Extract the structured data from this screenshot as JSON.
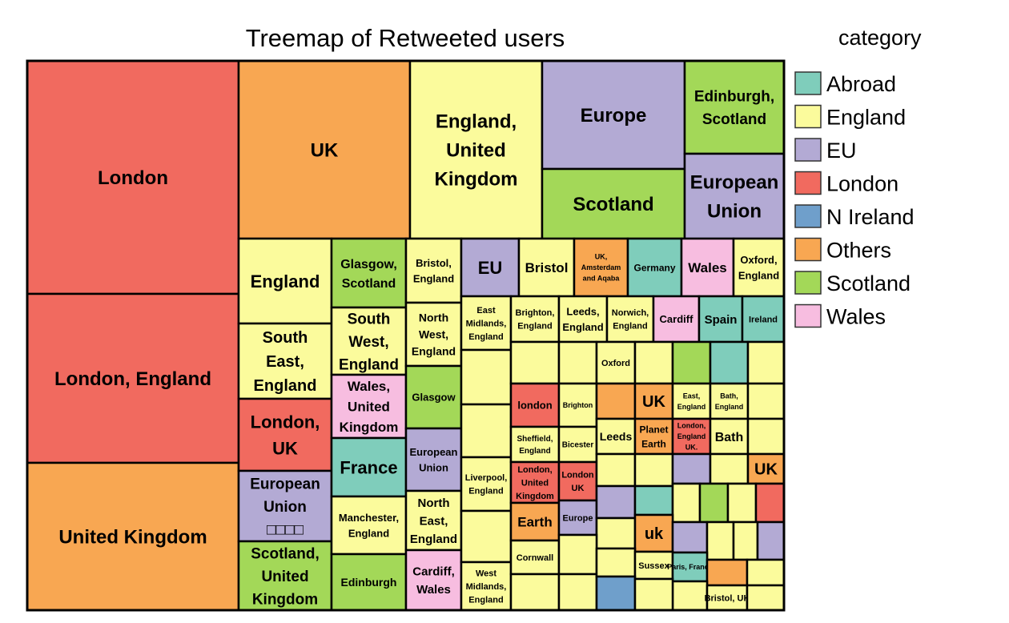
{
  "chart_data": {
    "type": "treemap",
    "title": "Treemap of Retweeted users",
    "legend": {
      "title": "category",
      "placement": "right",
      "entries": [
        {
          "name": "Abroad",
          "color": "#7fcdbb"
        },
        {
          "name": "England",
          "color": "#fbfb9c"
        },
        {
          "name": "EU",
          "color": "#b3aad4"
        },
        {
          "name": "London",
          "color": "#f16a5f"
        },
        {
          "name": "N Ireland",
          "color": "#6f9fcb"
        },
        {
          "name": "Others",
          "color": "#f8a752"
        },
        {
          "name": "Scotland",
          "color": "#a3d858"
        },
        {
          "name": "Wales",
          "color": "#f7bde0"
        }
      ]
    },
    "cells": [
      {
        "label": "London",
        "category": "London"
      },
      {
        "label": "London, England",
        "category": "London"
      },
      {
        "label": "United Kingdom",
        "category": "Others"
      },
      {
        "label": "UK",
        "category": "Others"
      },
      {
        "label": "England, United Kingdom",
        "category": "England"
      },
      {
        "label": "Europe",
        "category": "EU"
      },
      {
        "label": "Scotland",
        "category": "Scotland"
      },
      {
        "label": "Edinburgh, Scotland",
        "category": "Scotland"
      },
      {
        "label": "European Union",
        "category": "EU"
      },
      {
        "label": "England",
        "category": "England"
      },
      {
        "label": "South East, England",
        "category": "England"
      },
      {
        "label": "London, UK",
        "category": "London"
      },
      {
        "label": "European Union □□□□",
        "category": "EU"
      },
      {
        "label": "Scotland, United Kingdom",
        "category": "Scotland"
      },
      {
        "label": "Glasgow, Scotland",
        "category": "Scotland"
      },
      {
        "label": "South West, England",
        "category": "England"
      },
      {
        "label": "Wales, United Kingdom",
        "category": "Wales"
      },
      {
        "label": "France",
        "category": "Abroad"
      },
      {
        "label": "Manchester, England",
        "category": "England"
      },
      {
        "label": "Edinburgh",
        "category": "Scotland"
      },
      {
        "label": "Bristol, England",
        "category": "England"
      },
      {
        "label": "North West, England",
        "category": "England"
      },
      {
        "label": "Glasgow",
        "category": "Scotland"
      },
      {
        "label": "European Union",
        "category": "EU"
      },
      {
        "label": "North East, England",
        "category": "England"
      },
      {
        "label": "Cardiff, Wales",
        "category": "Wales"
      },
      {
        "label": "EU",
        "category": "EU"
      },
      {
        "label": "Bristol",
        "category": "England"
      },
      {
        "label": "UK, Amsterdam and Aqaba",
        "category": "Others"
      },
      {
        "label": "Germany",
        "category": "Abroad"
      },
      {
        "label": "Wales",
        "category": "Wales"
      },
      {
        "label": "Oxford, England",
        "category": "England"
      },
      {
        "label": "East Midlands, England",
        "category": "England"
      },
      {
        "label": "",
        "category": "England"
      },
      {
        "label": "",
        "category": "England"
      },
      {
        "label": "Liverpool, England",
        "category": "England"
      },
      {
        "label": "",
        "category": "England"
      },
      {
        "label": "West Midlands, England",
        "category": "England"
      },
      {
        "label": "Brighton, England",
        "category": "England"
      },
      {
        "label": "Leeds, England",
        "category": "England"
      },
      {
        "label": "Norwich, England",
        "category": "England"
      },
      {
        "label": "Cardiff",
        "category": "Wales"
      },
      {
        "label": "Spain",
        "category": "Abroad"
      },
      {
        "label": "Ireland",
        "category": "Abroad"
      },
      {
        "label": "",
        "category": "England"
      },
      {
        "label": "",
        "category": "England"
      },
      {
        "label": "Oxford",
        "category": "England"
      },
      {
        "label": "",
        "category": "England"
      },
      {
        "label": "",
        "category": "Scotland"
      },
      {
        "label": "",
        "category": "Abroad"
      },
      {
        "label": "",
        "category": "England"
      },
      {
        "label": "london",
        "category": "London"
      },
      {
        "label": "Brighton",
        "category": "England"
      },
      {
        "label": "",
        "category": "Others"
      },
      {
        "label": "UK",
        "category": "Others"
      },
      {
        "label": "East, England",
        "category": "England"
      },
      {
        "label": "Bath, England",
        "category": "England"
      },
      {
        "label": "",
        "category": "England"
      },
      {
        "label": "Sheffield, England",
        "category": "England"
      },
      {
        "label": "Bicester",
        "category": "England"
      },
      {
        "label": "Leeds",
        "category": "England"
      },
      {
        "label": "Planet Earth",
        "category": "Others"
      },
      {
        "label": "London, England UK.",
        "category": "London"
      },
      {
        "label": "Bath",
        "category": "England"
      },
      {
        "label": "",
        "category": "England"
      },
      {
        "label": "London, United Kingdom",
        "category": "London"
      },
      {
        "label": "London UK",
        "category": "London"
      },
      {
        "label": "",
        "category": "England"
      },
      {
        "label": "",
        "category": "England"
      },
      {
        "label": "",
        "category": "EU"
      },
      {
        "label": "",
        "category": "England"
      },
      {
        "label": "UK",
        "category": "Others"
      },
      {
        "label": "Earth",
        "category": "Others"
      },
      {
        "label": "Europe",
        "category": "EU"
      },
      {
        "label": "",
        "category": "EU"
      },
      {
        "label": "",
        "category": "Abroad"
      },
      {
        "label": "",
        "category": "England"
      },
      {
        "label": "",
        "category": "Scotland"
      },
      {
        "label": "",
        "category": "England"
      },
      {
        "label": "",
        "category": "London"
      },
      {
        "label": "",
        "category": "England"
      },
      {
        "label": "uk",
        "category": "Others"
      },
      {
        "label": "",
        "category": "EU"
      },
      {
        "label": "",
        "category": "England"
      },
      {
        "label": "",
        "category": "England"
      },
      {
        "label": "",
        "category": "EU"
      },
      {
        "label": "Cornwall",
        "category": "England"
      },
      {
        "label": "",
        "category": "England"
      },
      {
        "label": "",
        "category": "England"
      },
      {
        "label": "",
        "category": "England"
      },
      {
        "label": "",
        "category": "England"
      },
      {
        "label": "Sussex",
        "category": "England"
      },
      {
        "label": "Paris, France",
        "category": "Abroad"
      },
      {
        "label": "",
        "category": "Others"
      },
      {
        "label": "",
        "category": "England"
      },
      {
        "label": "",
        "category": "England"
      },
      {
        "label": "Bristol, UK",
        "category": "England"
      },
      {
        "label": "",
        "category": "N Ireland"
      },
      {
        "label": "",
        "category": "England"
      },
      {
        "label": "",
        "category": "England"
      },
      {
        "label": "",
        "category": "England"
      },
      {
        "label": "",
        "category": "Abroad"
      }
    ]
  }
}
